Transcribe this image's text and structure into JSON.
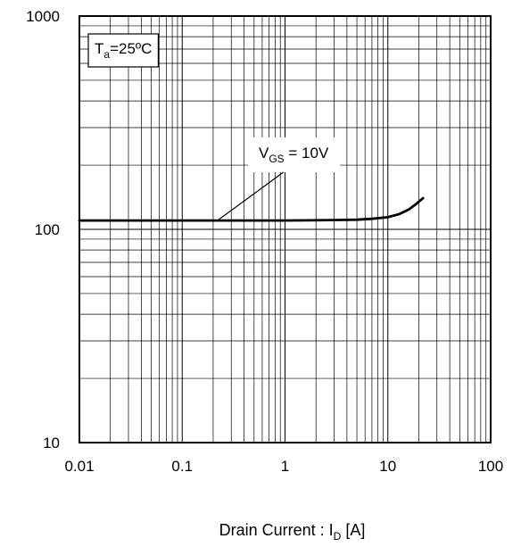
{
  "chart_data": {
    "type": "line",
    "x_scale": "log",
    "y_scale": "log",
    "xlim": [
      0.01,
      100
    ],
    "ylim": [
      10,
      1000
    ],
    "grid": true,
    "xlabel_main": "Drain Current : I",
    "xlabel_sub": "D",
    "xlabel_unit": " [A]",
    "ylabel": "",
    "x_tick_labels": [
      {
        "value": 0.01,
        "label": "0.01"
      },
      {
        "value": 0.1,
        "label": "0.1"
      },
      {
        "value": 1,
        "label": "1"
      },
      {
        "value": 10,
        "label": "10"
      },
      {
        "value": 100,
        "label": "100"
      }
    ],
    "y_tick_labels": [
      {
        "value": 10,
        "label": "10"
      },
      {
        "value": 100,
        "label": "100"
      },
      {
        "value": 1000,
        "label": "1000"
      }
    ],
    "legend_box": {
      "main": "T",
      "sub": "a",
      "rest": "=25ºC",
      "placement": "top-left"
    },
    "series": [
      {
        "annotation": {
          "main": "V",
          "sub": "GS",
          "rest": " = 10V",
          "anchor_x": 0.22,
          "anchor_y": 110
        },
        "x": [
          0.01,
          0.1,
          0.22,
          1,
          3,
          5,
          7,
          10,
          13,
          16,
          19,
          22
        ],
        "y": [
          110,
          110,
          110,
          110,
          110.5,
          111,
          112,
          114,
          118,
          124,
          132,
          140
        ]
      }
    ]
  }
}
